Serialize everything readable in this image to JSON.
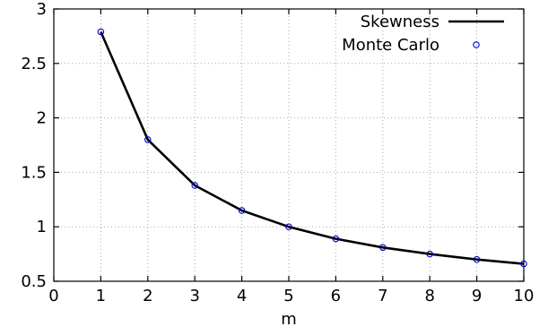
{
  "chart_data": {
    "type": "line",
    "title": "",
    "xlabel": "m",
    "ylabel": "",
    "xlim": [
      0,
      10
    ],
    "ylim": [
      0.5,
      3
    ],
    "xticks": [
      "0",
      "1",
      "2",
      "3",
      "4",
      "5",
      "6",
      "7",
      "8",
      "9",
      "10"
    ],
    "yticks": [
      "0.5",
      "1",
      "1.5",
      "2",
      "2.5",
      "3"
    ],
    "grid": true,
    "legend_position": "top-right",
    "series": [
      {
        "name": "Skewness",
        "style": "line",
        "color": "#000000",
        "x": [
          1,
          2,
          3,
          4,
          5,
          6,
          7,
          8,
          9,
          10
        ],
        "y": [
          2.79,
          1.8,
          1.38,
          1.15,
          1.0,
          0.89,
          0.81,
          0.75,
          0.7,
          0.66
        ]
      },
      {
        "name": "Monte Carlo",
        "style": "markers",
        "color": "#0000cc",
        "x": [
          1,
          2,
          3,
          4,
          5,
          6,
          7,
          8,
          9,
          10
        ],
        "y": [
          2.79,
          1.8,
          1.38,
          1.15,
          1.0,
          0.89,
          0.81,
          0.75,
          0.7,
          0.66
        ]
      }
    ]
  }
}
